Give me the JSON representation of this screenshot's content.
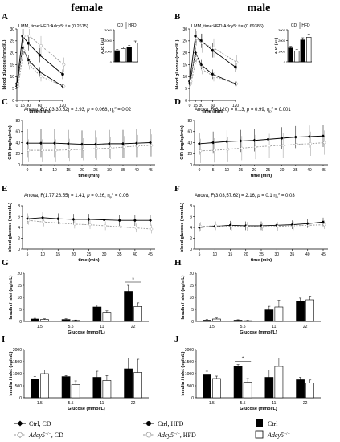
{
  "headers": {
    "female": "female",
    "male": "male"
  },
  "legend": {
    "ctrl_cd": "Ctrl, CD",
    "ctrl_hfd": "Ctrl, HFD",
    "ctrl_bar": "Ctrl",
    "ko_cd_gene": "Adcy5",
    "ko_cd_sup": "−/−",
    "ko_cd_rest": ", CD",
    "ko_hfd_gene": "Adcy5",
    "ko_hfd_sup": "−/−",
    "ko_hfd_rest": ", HFD",
    "ko_bar_gene": "Adcy5",
    "ko_bar_sup": "−/−"
  },
  "colors": {
    "ctrl": "#000000",
    "ko": "#999999",
    "bar_ctrl": "#000000",
    "bar_ko": "#ffffff"
  },
  "chart_data": [
    {
      "panel": "A",
      "type": "line",
      "annotation": "LMM, time:HFD:Adcy5: t = (0.2615)",
      "xlabel": "time (min)",
      "ylabel": "blood glucose (mmol/L)",
      "x": [
        0,
        15,
        30,
        60,
        120
      ],
      "xticks": [
        0,
        15,
        30,
        60,
        120
      ],
      "ylim": [
        0,
        30
      ],
      "yticks": [
        0,
        5,
        10,
        15,
        20,
        25,
        30
      ],
      "series": [
        {
          "name": "Ctrl, CD",
          "values": [
            6,
            22,
            17,
            12,
            6
          ],
          "err": [
            1,
            2,
            2,
            2,
            1
          ]
        },
        {
          "name": "Adcy5−/−, CD",
          "values": [
            6,
            21,
            15,
            10,
            6
          ],
          "err": [
            1,
            2,
            2,
            2,
            1
          ]
        },
        {
          "name": "Ctrl, HFD",
          "values": [
            7,
            27,
            24,
            19,
            11
          ],
          "err": [
            1,
            3,
            3,
            3,
            2
          ]
        },
        {
          "name": "Adcy5−/−, HFD",
          "values": [
            7,
            27,
            27,
            23,
            15
          ],
          "err": [
            1,
            3,
            4,
            4,
            3
          ]
        }
      ],
      "inset": {
        "type": "bar",
        "ylabel": "AUC (AU)",
        "groups": [
          "CD",
          "HFD"
        ],
        "ylim": [
          0,
          3000
        ],
        "yticks": [
          0,
          1000,
          2000,
          3000
        ],
        "values": [
          1050,
          1250,
          1400,
          1750
        ],
        "err": [
          100,
          150,
          150,
          200
        ]
      }
    },
    {
      "panel": "B",
      "type": "line",
      "annotation": "LMM, time:HFD:Adcy5: t = (0.69386)",
      "xlabel": "time (min)",
      "ylabel": "blood glucose (mmol/L)",
      "x": [
        0,
        15,
        30,
        60,
        120
      ],
      "xticks": [
        0,
        15,
        30,
        60,
        120
      ],
      "ylim": [
        0,
        30
      ],
      "yticks": [
        0,
        5,
        10,
        15,
        20,
        25,
        30
      ],
      "series": [
        {
          "name": "Ctrl, CD",
          "values": [
            7,
            20,
            15,
            11,
            7
          ],
          "err": [
            1,
            2,
            2,
            2,
            1
          ]
        },
        {
          "name": "Adcy5−/−, CD",
          "values": [
            7,
            18,
            13,
            10,
            7
          ],
          "err": [
            1,
            2,
            2,
            2,
            1
          ]
        },
        {
          "name": "Ctrl, HFD",
          "values": [
            8,
            27,
            25,
            21,
            14
          ],
          "err": [
            1,
            3,
            3,
            3,
            2
          ]
        },
        {
          "name": "Adcy5−/−, HFD",
          "values": [
            8,
            26,
            24,
            22,
            16
          ],
          "err": [
            1,
            3,
            4,
            4,
            3
          ]
        }
      ],
      "inset": {
        "type": "bar",
        "ylabel": "AUC (AU)",
        "groups": [
          "CD",
          "HFD"
        ],
        "ylim": [
          0,
          3000
        ],
        "yticks": [
          0,
          1000,
          2000,
          3000
        ],
        "values": [
          1300,
          1000,
          2050,
          2300
        ],
        "err": [
          150,
          150,
          200,
          300
        ]
      }
    },
    {
      "panel": "C",
      "type": "line",
      "annotation_pre": "Anova,  F(2.03,30.52) = 2.93, ",
      "annotation_p": "p",
      "annotation_mid": " = 0.068, η",
      "annotation_sub": "p",
      "annotation_sup": "2",
      "annotation_post": " = 0.02",
      "xlabel": "time (min)",
      "ylabel": "GIR (mg/kg/min)",
      "x": [
        0,
        5,
        10,
        15,
        20,
        25,
        30,
        35,
        40,
        45
      ],
      "xticks": [
        0,
        5,
        10,
        15,
        20,
        25,
        30,
        35,
        40,
        45
      ],
      "ylim": [
        0,
        80
      ],
      "yticks": [
        0,
        20,
        40,
        60,
        80
      ],
      "series": [
        {
          "name": "Ctrl",
          "values": [
            39,
            39,
            39,
            38,
            37,
            37,
            38,
            38,
            39,
            40
          ],
          "err": [
            25,
            25,
            25,
            25,
            25,
            25,
            25,
            25,
            25,
            25
          ]
        },
        {
          "name": "Adcy5−/−",
          "values": [
            26,
            26,
            26,
            27,
            28,
            29,
            30,
            32,
            34,
            35
          ],
          "err": [
            20,
            20,
            20,
            20,
            20,
            20,
            20,
            20,
            20,
            20
          ]
        }
      ]
    },
    {
      "panel": "D",
      "type": "line",
      "annotation_pre": "Anova,  F(6,120) = 0.13, ",
      "annotation_p": "p",
      "annotation_mid": " = 0.99, η",
      "annotation_sub": "p",
      "annotation_sup": "2",
      "annotation_post": " = 0.001",
      "xlabel": "time (min)",
      "ylabel": "GIR (mg/kg/min)",
      "x": [
        0,
        5,
        10,
        15,
        20,
        25,
        30,
        35,
        40,
        45
      ],
      "xticks": [
        0,
        5,
        10,
        15,
        20,
        25,
        30,
        35,
        40,
        45
      ],
      "ylim": [
        0,
        80
      ],
      "yticks": [
        0,
        20,
        40,
        60,
        80
      ],
      "series": [
        {
          "name": "Ctrl",
          "values": [
            38,
            40,
            42,
            43,
            44,
            46,
            48,
            50,
            51,
            52
          ],
          "err": [
            20,
            20,
            20,
            20,
            20,
            20,
            20,
            20,
            20,
            20
          ]
        },
        {
          "name": "Adcy5−/−",
          "values": [
            25,
            26,
            28,
            30,
            32,
            34,
            35,
            37,
            38,
            40
          ],
          "err": [
            22,
            22,
            22,
            22,
            22,
            22,
            22,
            22,
            22,
            22
          ]
        }
      ]
    },
    {
      "panel": "E",
      "type": "line",
      "annotation_pre": "Anova,  F(1.77,26.55) = 1.41, ",
      "annotation_p": "p",
      "annotation_mid": " = 0.26, η",
      "annotation_sub": "p",
      "annotation_sup": "2",
      "annotation_post": " = 0.06",
      "xlabel": "time (min)",
      "ylabel": "blood glucose (mmol/L)",
      "x": [
        5,
        10,
        15,
        20,
        25,
        30,
        35,
        40,
        45
      ],
      "xticks": [
        5,
        10,
        15,
        20,
        25,
        30,
        35,
        40,
        45
      ],
      "ylim": [
        0,
        8
      ],
      "yticks": [
        0,
        2,
        4,
        6,
        8
      ],
      "series": [
        {
          "name": "Ctrl",
          "values": [
            5.6,
            5.8,
            5.6,
            5.5,
            5.5,
            5.4,
            5.3,
            5.3,
            5.3
          ],
          "err": [
            1.0,
            1.0,
            1.0,
            1.0,
            1.0,
            1.0,
            1.0,
            1.0,
            1.0
          ]
        },
        {
          "name": "Adcy5−/−",
          "values": [
            5.3,
            5.0,
            4.8,
            4.6,
            4.5,
            4.3,
            4.1,
            3.9,
            3.7
          ],
          "err": [
            0.8,
            0.8,
            0.8,
            0.8,
            0.8,
            0.8,
            0.8,
            0.8,
            0.8
          ]
        }
      ]
    },
    {
      "panel": "F",
      "type": "line",
      "annotation_pre": "Anova,  F(3.03,57.62) = 2.16, ",
      "annotation_p": "p",
      "annotation_mid": " = 0.1 η",
      "annotation_sub": "p",
      "annotation_sup": "2",
      "annotation_post": " = 0.03",
      "xlabel": "time (min)",
      "ylabel": "blood glucose (mmol/L)",
      "x": [
        5,
        10,
        15,
        20,
        25,
        30,
        35,
        40,
        45
      ],
      "xticks": [
        5,
        10,
        15,
        20,
        25,
        30,
        35,
        40,
        45
      ],
      "ylim": [
        0,
        8
      ],
      "yticks": [
        0,
        2,
        4,
        6,
        8
      ],
      "series": [
        {
          "name": "Ctrl",
          "values": [
            4.0,
            4.2,
            4.4,
            4.3,
            4.3,
            4.4,
            4.5,
            4.7,
            5.0
          ],
          "err": [
            0.8,
            0.8,
            0.8,
            0.8,
            0.8,
            0.8,
            0.8,
            0.8,
            0.8
          ]
        },
        {
          "name": "Adcy5−/−",
          "values": [
            4.2,
            4.3,
            4.2,
            4.2,
            4.1,
            4.2,
            4.3,
            4.4,
            4.5
          ],
          "err": [
            0.8,
            0.8,
            0.8,
            0.8,
            0.8,
            0.8,
            0.8,
            0.8,
            0.8
          ]
        }
      ]
    },
    {
      "panel": "G",
      "type": "bar",
      "xlabel": "Glucose (mmol/L)",
      "ylabel": "Insulin / islet (ng/mL)",
      "categories": [
        "1.5",
        "5.5",
        "11",
        "22"
      ],
      "ylim": [
        0,
        20
      ],
      "yticks": [
        0,
        5,
        10,
        15,
        20
      ],
      "series": [
        {
          "name": "Ctrl",
          "values": [
            1.0,
            0.8,
            6.0,
            12.5
          ],
          "err": [
            0.3,
            0.3,
            0.8,
            2.5
          ]
        },
        {
          "name": "Adcy5−/−",
          "values": [
            0.8,
            0.4,
            3.8,
            6.2
          ],
          "err": [
            0.3,
            0.2,
            0.6,
            1.5
          ]
        }
      ],
      "significance": [
        {
          "category": "22",
          "label": "*"
        }
      ]
    },
    {
      "panel": "H",
      "type": "bar",
      "xlabel": "Glucose (mmol/L)",
      "ylabel": "Insulin / islet (ng/mL)",
      "categories": [
        "1.5",
        "5.5",
        "11",
        "22"
      ],
      "ylim": [
        0,
        20
      ],
      "yticks": [
        0,
        5,
        10,
        15,
        20
      ],
      "series": [
        {
          "name": "Ctrl",
          "values": [
            0.5,
            0.5,
            4.8,
            8.5
          ],
          "err": [
            0.3,
            0.2,
            1.5,
            1.2
          ]
        },
        {
          "name": "Adcy5−/−",
          "values": [
            1.0,
            0.3,
            6.0,
            9.0
          ],
          "err": [
            0.4,
            0.2,
            2.8,
            1.5
          ]
        }
      ]
    },
    {
      "panel": "I",
      "type": "bar",
      "xlabel": "Glucose (mmol/L)",
      "ylabel": "Insulin / islet (ng/mL)",
      "categories": [
        "1.5",
        "5.5",
        "11",
        "22"
      ],
      "ylim": [
        0,
        2000
      ],
      "yticks": [
        0,
        500,
        1000,
        1500,
        2000
      ],
      "series": [
        {
          "name": "Ctrl",
          "values": [
            780,
            880,
            850,
            1200
          ],
          "err": [
            100,
            40,
            250,
            450
          ]
        },
        {
          "name": "Adcy5−/−",
          "values": [
            1000,
            550,
            720,
            1050
          ],
          "err": [
            150,
            150,
            200,
            550
          ]
        }
      ]
    },
    {
      "panel": "J",
      "type": "bar",
      "xlabel": "Glucose (mmol/L)",
      "ylabel": "Insulin / islet (ng/mL)",
      "categories": [
        "1.5",
        "5.5",
        "11",
        "22"
      ],
      "ylim": [
        0,
        2000
      ],
      "yticks": [
        0,
        500,
        1000,
        1500,
        2000
      ],
      "series": [
        {
          "name": "Ctrl",
          "values": [
            950,
            1300,
            850,
            750
          ],
          "err": [
            150,
            80,
            300,
            100
          ]
        },
        {
          "name": "Adcy5−/−",
          "values": [
            800,
            650,
            1300,
            620
          ],
          "err": [
            100,
            150,
            350,
            120
          ]
        }
      ],
      "significance": [
        {
          "category": "5.5",
          "label": "*"
        }
      ]
    }
  ]
}
